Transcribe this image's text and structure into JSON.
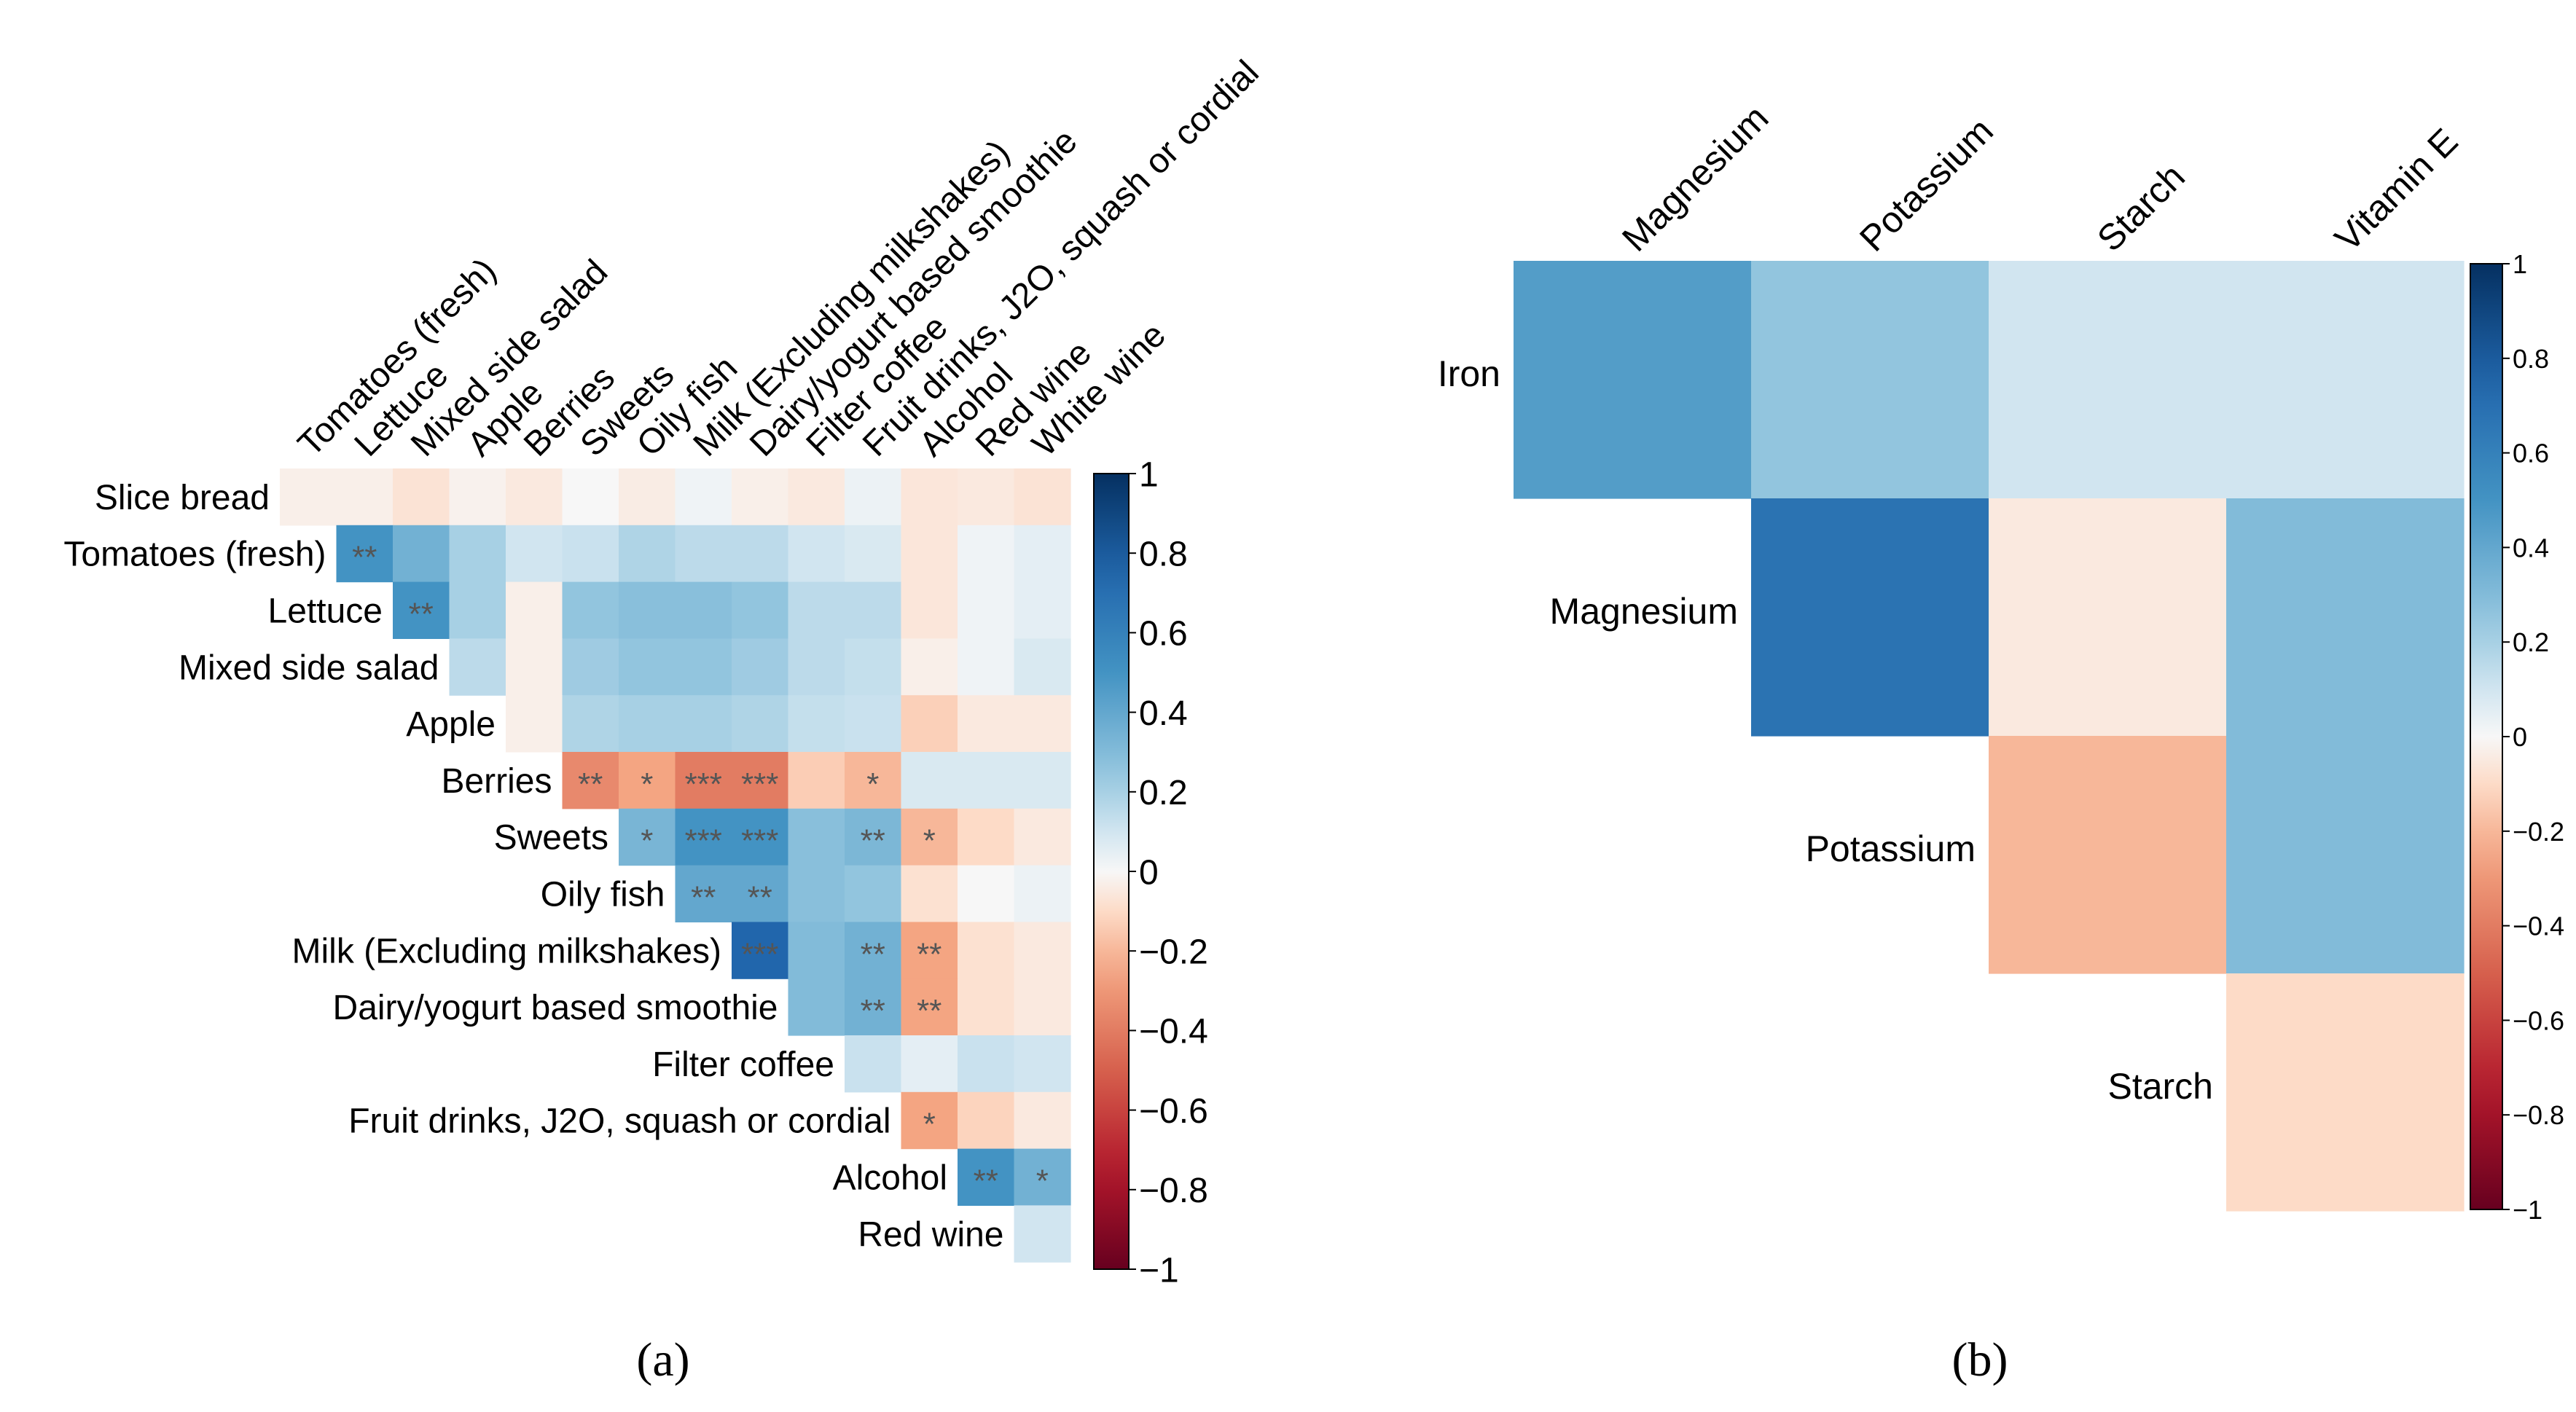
{
  "chart_data": [
    {
      "type": "heatmap",
      "panel_label": "(a)",
      "shape": "upper-triangular correlogram",
      "legend": "right",
      "colorbar": {
        "min": -1,
        "max": 1,
        "tick_labels": [
          "1",
          "0.8",
          "0.6",
          "0.4",
          "0.2",
          "0",
          "−0.2",
          "−0.4",
          "−0.6",
          "−0.8",
          "−1"
        ],
        "tick_values": [
          1,
          0.8,
          0.6,
          0.4,
          0.2,
          0,
          -0.2,
          -0.4,
          -0.6,
          -0.8,
          -1
        ]
      },
      "row_labels": [
        "Slice bread",
        "Tomatoes (fresh)",
        "Lettuce",
        "Mixed side salad",
        "Apple",
        "Berries",
        "Sweets",
        "Oily fish",
        "Milk (Excluding milkshakes)",
        "Dairy/yogurt based smoothie",
        "Filter coffee",
        "Fruit drinks, J2O, squash or cordial",
        "Alcohol",
        "Red wine"
      ],
      "col_labels": [
        "Tomatoes (fresh)",
        "Lettuce",
        "Mixed side salad",
        "Apple",
        "Berries",
        "Sweets",
        "Oily fish",
        "Milk (Excluding milkshakes)",
        "Dairy/yogurt based smoothie",
        "Filter coffee",
        "Fruit drinks, J2O, squash or cordial",
        "Alcohol",
        "Red wine",
        "White wine"
      ],
      "values": [
        [
          -0.03,
          -0.03,
          -0.07,
          -0.02,
          -0.05,
          0.0,
          -0.04,
          0.02,
          -0.03,
          -0.05,
          0.03,
          -0.06,
          -0.05,
          -0.07
        ],
        [
          null,
          0.5,
          0.35,
          0.2,
          0.1,
          0.12,
          0.18,
          0.15,
          0.15,
          0.1,
          0.08,
          -0.06,
          0.02,
          0.05
        ],
        [
          null,
          null,
          0.5,
          0.2,
          -0.03,
          0.25,
          0.28,
          0.28,
          0.25,
          0.15,
          0.15,
          -0.06,
          0.02,
          0.05
        ],
        [
          null,
          null,
          null,
          0.15,
          -0.03,
          0.22,
          0.25,
          0.25,
          0.22,
          0.15,
          0.13,
          -0.03,
          0.02,
          0.08
        ],
        [
          null,
          null,
          null,
          null,
          -0.03,
          0.18,
          0.2,
          0.2,
          0.18,
          0.13,
          0.12,
          -0.13,
          -0.05,
          -0.05
        ],
        [
          null,
          null,
          null,
          null,
          null,
          -0.35,
          -0.25,
          -0.4,
          -0.4,
          -0.14,
          -0.2,
          0.08,
          0.08,
          0.08
        ],
        [
          null,
          null,
          null,
          null,
          null,
          null,
          0.33,
          0.5,
          0.5,
          0.28,
          0.32,
          -0.2,
          -0.1,
          -0.05
        ],
        [
          null,
          null,
          null,
          null,
          null,
          null,
          null,
          0.4,
          0.4,
          0.28,
          0.25,
          -0.08,
          0.0,
          0.03
        ],
        [
          null,
          null,
          null,
          null,
          null,
          null,
          null,
          null,
          0.75,
          0.3,
          0.35,
          -0.25,
          -0.08,
          -0.05
        ],
        [
          null,
          null,
          null,
          null,
          null,
          null,
          null,
          null,
          null,
          0.3,
          0.35,
          -0.25,
          -0.08,
          -0.05
        ],
        [
          null,
          null,
          null,
          null,
          null,
          null,
          null,
          null,
          null,
          null,
          0.12,
          0.05,
          0.12,
          0.1
        ],
        [
          null,
          null,
          null,
          null,
          null,
          null,
          null,
          null,
          null,
          null,
          null,
          -0.25,
          -0.12,
          -0.05
        ],
        [
          null,
          null,
          null,
          null,
          null,
          null,
          null,
          null,
          null,
          null,
          null,
          null,
          0.5,
          0.35
        ],
        [
          null,
          null,
          null,
          null,
          null,
          null,
          null,
          null,
          null,
          null,
          null,
          null,
          null,
          0.1
        ]
      ],
      "significance": [
        [
          "",
          "",
          "",
          "",
          "",
          "",
          "",
          "",
          "",
          "",
          "",
          "",
          "",
          ""
        ],
        [
          "",
          "**",
          "",
          "",
          "",
          "",
          "",
          "",
          "",
          "",
          "",
          "",
          "",
          ""
        ],
        [
          "",
          "",
          "**",
          "",
          "",
          "",
          "",
          "",
          "",
          "",
          "",
          "",
          "",
          ""
        ],
        [
          "",
          "",
          "",
          "",
          "",
          "",
          "",
          "",
          "",
          "",
          "",
          "",
          "",
          ""
        ],
        [
          "",
          "",
          "",
          "",
          "",
          "",
          "",
          "",
          "",
          "",
          "",
          "",
          "",
          ""
        ],
        [
          "",
          "",
          "",
          "",
          "",
          "**",
          "*",
          "***",
          "***",
          "",
          "*",
          "",
          "",
          ""
        ],
        [
          "",
          "",
          "",
          "",
          "",
          "",
          "*",
          "***",
          "***",
          "",
          "**",
          "*",
          "",
          ""
        ],
        [
          "",
          "",
          "",
          "",
          "",
          "",
          "",
          "**",
          "**",
          "",
          "",
          "",
          "",
          ""
        ],
        [
          "",
          "",
          "",
          "",
          "",
          "",
          "",
          "",
          "***",
          "",
          "**",
          "**",
          "",
          ""
        ],
        [
          "",
          "",
          "",
          "",
          "",
          "",
          "",
          "",
          "",
          "",
          "**",
          "**",
          "",
          ""
        ],
        [
          "",
          "",
          "",
          "",
          "",
          "",
          "",
          "",
          "",
          "",
          "",
          "",
          "",
          ""
        ],
        [
          "",
          "",
          "",
          "",
          "",
          "",
          "",
          "",
          "",
          "",
          "",
          "*",
          "",
          ""
        ],
        [
          "",
          "",
          "",
          "",
          "",
          "",
          "",
          "",
          "",
          "",
          "",
          "",
          "**",
          "*"
        ],
        [
          "",
          "",
          "",
          "",
          "",
          "",
          "",
          "",
          "",
          "",
          "",
          "",
          "",
          ""
        ]
      ]
    },
    {
      "type": "heatmap",
      "panel_label": "(b)",
      "shape": "upper-triangular correlogram",
      "legend": "right",
      "colorbar": {
        "min": -1,
        "max": 1,
        "tick_labels": [
          "1",
          "0.8",
          "0.6",
          "0.4",
          "0.2",
          "0",
          "−0.2",
          "−0.4",
          "−0.6",
          "−0.8",
          "−1"
        ],
        "tick_values": [
          1,
          0.8,
          0.6,
          0.4,
          0.2,
          0,
          -0.2,
          -0.4,
          -0.6,
          -0.8,
          -1
        ]
      },
      "row_labels": [
        "Iron",
        "Magnesium",
        "Potassium",
        "Starch"
      ],
      "col_labels": [
        "Magnesium",
        "Potassium",
        "Starch",
        "Vitamin E"
      ],
      "values": [
        [
          0.45,
          0.25,
          0.1,
          0.1
        ],
        [
          null,
          0.68,
          -0.05,
          0.3
        ],
        [
          null,
          null,
          -0.2,
          0.3
        ],
        [
          null,
          null,
          null,
          -0.1
        ]
      ]
    }
  ]
}
